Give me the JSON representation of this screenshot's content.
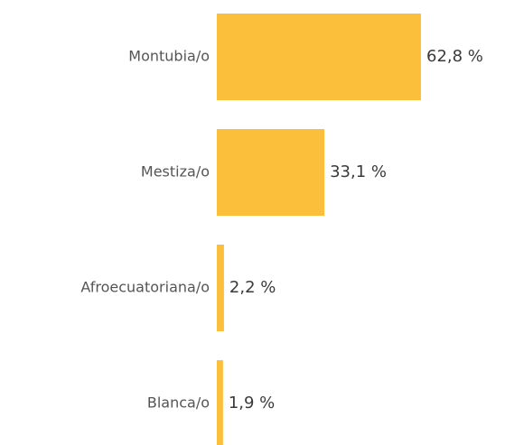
{
  "chart_data": {
    "type": "bar",
    "orientation": "horizontal",
    "categories": [
      "Montubia/o",
      "Mestiza/o",
      "Afroecuatoriana/o",
      "Blanca/o"
    ],
    "values": [
      62.8,
      33.1,
      2.2,
      1.9
    ],
    "value_labels": [
      "62,8 %",
      "33,1 %",
      "2,2 %",
      "1,9 %"
    ],
    "color": "#fbbf3b"
  }
}
